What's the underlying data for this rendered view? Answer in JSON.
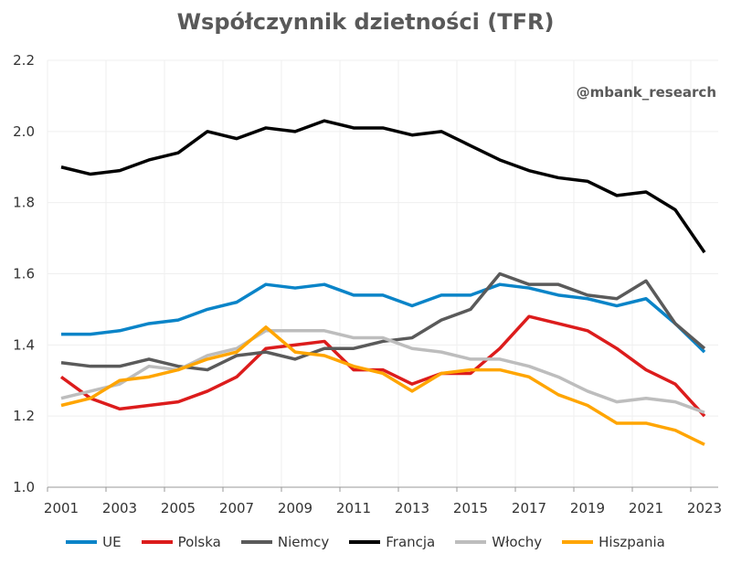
{
  "chart_data": {
    "type": "line",
    "title": "Współczynnik dzietności (TFR)",
    "watermark": "@mbank_research",
    "x": [
      2001,
      2002,
      2003,
      2004,
      2005,
      2006,
      2007,
      2008,
      2009,
      2010,
      2011,
      2012,
      2013,
      2014,
      2015,
      2016,
      2017,
      2018,
      2019,
      2020,
      2021,
      2022,
      2023
    ],
    "x_tick_labels": [
      "2001",
      "2003",
      "2005",
      "2007",
      "2009",
      "2011",
      "2013",
      "2015",
      "2017",
      "2019",
      "2021",
      "2023"
    ],
    "y_tick_labels": [
      "1.0",
      "1.2",
      "1.4",
      "1.6",
      "1.8",
      "2.0",
      "2.2"
    ],
    "ylim": [
      1.0,
      2.2
    ],
    "grid": true,
    "legend_position": "bottom",
    "series": [
      {
        "name": "UE",
        "color": "#0a84c8",
        "values": [
          1.43,
          1.43,
          1.44,
          1.46,
          1.47,
          1.5,
          1.52,
          1.57,
          1.56,
          1.57,
          1.54,
          1.54,
          1.51,
          1.54,
          1.54,
          1.57,
          1.56,
          1.54,
          1.53,
          1.51,
          1.53,
          1.46,
          1.38
        ]
      },
      {
        "name": "Polska",
        "color": "#dc1c1c",
        "values": [
          1.31,
          1.25,
          1.22,
          1.23,
          1.24,
          1.27,
          1.31,
          1.39,
          1.4,
          1.41,
          1.33,
          1.33,
          1.29,
          1.32,
          1.32,
          1.39,
          1.48,
          1.46,
          1.44,
          1.39,
          1.33,
          1.29,
          1.2
        ]
      },
      {
        "name": "Niemcy",
        "color": "#5a5a5a",
        "values": [
          1.35,
          1.34,
          1.34,
          1.36,
          1.34,
          1.33,
          1.37,
          1.38,
          1.36,
          1.39,
          1.39,
          1.41,
          1.42,
          1.47,
          1.5,
          1.6,
          1.57,
          1.57,
          1.54,
          1.53,
          1.58,
          1.46,
          1.39
        ]
      },
      {
        "name": "Francja",
        "color": "#000000",
        "values": [
          1.9,
          1.88,
          1.89,
          1.92,
          1.94,
          2.0,
          1.98,
          2.01,
          2.0,
          2.03,
          2.01,
          2.01,
          1.99,
          2.0,
          1.96,
          1.92,
          1.89,
          1.87,
          1.86,
          1.82,
          1.83,
          1.78,
          1.66
        ]
      },
      {
        "name": "Włochy",
        "color": "#bdbdbd",
        "values": [
          1.25,
          1.27,
          1.29,
          1.34,
          1.33,
          1.37,
          1.39,
          1.44,
          1.44,
          1.44,
          1.42,
          1.42,
          1.39,
          1.38,
          1.36,
          1.36,
          1.34,
          1.31,
          1.27,
          1.24,
          1.25,
          1.24,
          1.21
        ]
      },
      {
        "name": "Hiszpania",
        "color": "#ffa500",
        "values": [
          1.23,
          1.25,
          1.3,
          1.31,
          1.33,
          1.36,
          1.38,
          1.45,
          1.38,
          1.37,
          1.34,
          1.32,
          1.27,
          1.32,
          1.33,
          1.33,
          1.31,
          1.26,
          1.23,
          1.18,
          1.18,
          1.16,
          1.12
        ]
      }
    ]
  }
}
